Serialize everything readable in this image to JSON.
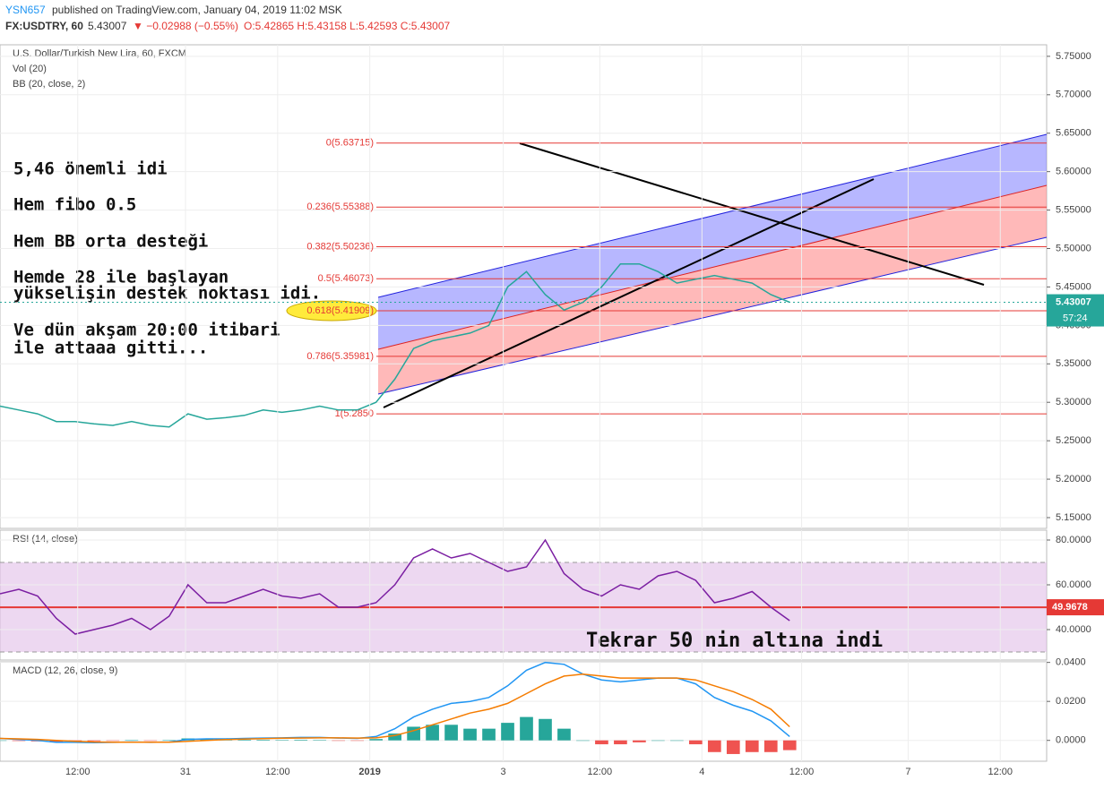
{
  "header": {
    "author": "YSN657",
    "published": "published on TradingView.com, January 04, 2019 11:02 MSK",
    "symbol": "FX:USDTRY, 60",
    "last": "5.43007",
    "change": "▼ −0.02988 (−0.55%)",
    "ohlc": "O:5.42865 H:5.43158 L:5.42593 C:5.43007"
  },
  "chart_data": [
    {
      "type": "line",
      "title": "U.S. Dollar/Turkish New Lira, 60, FXCM",
      "legend": [
        "Vol (20)",
        "BB (20, close, 2)"
      ],
      "x": [
        0,
        3,
        6,
        9,
        12,
        15,
        18,
        21,
        24,
        27,
        30,
        33,
        36,
        39,
        42,
        45,
        48,
        51,
        54,
        57,
        60,
        63,
        66,
        69,
        72,
        75,
        78,
        81,
        84,
        87,
        90,
        93,
        96,
        99,
        102,
        105,
        108,
        111,
        114,
        117,
        120,
        123,
        126
      ],
      "series": [
        {
          "name": "USDTRY",
          "color": "#26a69a",
          "values": [
            5.295,
            5.29,
            5.285,
            5.275,
            5.275,
            5.272,
            5.27,
            5.275,
            5.27,
            5.268,
            5.285,
            5.278,
            5.28,
            5.283,
            5.29,
            5.287,
            5.29,
            5.295,
            5.29,
            5.29,
            5.3,
            5.33,
            5.37,
            5.38,
            5.385,
            5.39,
            5.4,
            5.45,
            5.47,
            5.44,
            5.42,
            5.43,
            5.45,
            5.48,
            5.48,
            5.47,
            5.455,
            5.46,
            5.465,
            5.46,
            5.455,
            5.44,
            5.43007
          ]
        }
      ],
      "levels": [
        {
          "value": 5.63715,
          "label": "0(5.63715)"
        },
        {
          "value": 5.55388,
          "label": "0.236(5.55388)"
        },
        {
          "value": 5.50236,
          "label": "0.382(5.50236)"
        },
        {
          "value": 5.46073,
          "label": "0.5(5.46073)"
        },
        {
          "value": 5.41909,
          "label": "0.618(5.41909)",
          "highlight": true
        },
        {
          "value": 5.35981,
          "label": "0.786(5.35981)"
        },
        {
          "value": 5.285,
          "label": "1(5.2850"
        }
      ],
      "level_color": "#e53935",
      "last_price": 5.43007,
      "countdown": "57:24",
      "annotations": [
        "5,46 önemli idi",
        "Hem fibo 0.5",
        "Hem BB orta desteği",
        "Hemde 28 ile başlayan",
        "yükselişin destek noktası idi.",
        "Ve dün akşam 20:00 itibari",
        "ile attaaa gitti..."
      ],
      "xlim": [
        0,
        167
      ],
      "ylim": [
        5.136,
        5.765
      ],
      "yticks": [
        {
          "value": 5.15,
          "label": "5.15000"
        },
        {
          "value": 5.2,
          "label": "5.20000"
        },
        {
          "value": 5.25,
          "label": "5.25000"
        },
        {
          "value": 5.3,
          "label": "5.30000"
        },
        {
          "value": 5.35,
          "label": "5.35000"
        },
        {
          "value": 5.4,
          "label": "5.40000"
        },
        {
          "value": 5.45,
          "label": "5.45000"
        },
        {
          "value": 5.5,
          "label": "5.50000"
        },
        {
          "value": 5.55,
          "label": "5.55000"
        },
        {
          "value": 5.6,
          "label": "5.60000"
        },
        {
          "value": 5.65,
          "label": "5.65000"
        },
        {
          "value": 5.7,
          "label": "5.70000"
        },
        {
          "value": 5.75,
          "label": "5.75000"
        }
      ],
      "grid": true
    },
    {
      "type": "line",
      "title": "RSI (14, close)",
      "x": [
        0,
        3,
        6,
        9,
        12,
        15,
        18,
        21,
        24,
        27,
        30,
        33,
        36,
        39,
        42,
        45,
        48,
        51,
        54,
        57,
        60,
        63,
        66,
        69,
        72,
        75,
        78,
        81,
        84,
        87,
        90,
        93,
        96,
        99,
        102,
        105,
        108,
        111,
        114,
        117,
        120,
        123,
        126
      ],
      "series": [
        {
          "name": "RSI",
          "color": "#7b1fa2",
          "values": [
            56,
            58,
            55,
            45,
            38,
            40,
            42,
            45,
            40,
            46,
            60,
            52,
            52,
            55,
            58,
            55,
            54,
            56,
            50,
            50,
            52,
            60,
            72,
            76,
            72,
            74,
            70,
            66,
            68,
            80,
            65,
            58,
            55,
            60,
            58,
            64,
            66,
            62,
            52,
            54,
            57,
            50,
            44
          ]
        }
      ],
      "band": [
        30,
        70
      ],
      "band_color": "#e1bee7",
      "level": 49.9678,
      "level_color": "#e53935",
      "annotation": "Tekrar 50 nin altına indi",
      "xlim": [
        0,
        167
      ],
      "ylim": [
        26.4,
        84.4
      ],
      "yticks": [
        {
          "value": 40,
          "label": "40.0000"
        },
        {
          "value": 60,
          "label": "60.0000"
        },
        {
          "value": 80,
          "label": "80.0000"
        }
      ],
      "grid": true
    },
    {
      "type": "line",
      "title": "MACD (12, 26, close, 9)",
      "x": [
        0,
        3,
        6,
        9,
        12,
        15,
        18,
        21,
        24,
        27,
        30,
        33,
        36,
        39,
        42,
        45,
        48,
        51,
        54,
        57,
        60,
        63,
        66,
        69,
        72,
        75,
        78,
        81,
        84,
        87,
        90,
        93,
        96,
        99,
        102,
        105,
        108,
        111,
        114,
        117,
        120,
        123,
        126
      ],
      "series": [
        {
          "name": "Histogram",
          "type": "bar",
          "color": "#26a69a",
          "negative_color": "#ef5350",
          "values": [
            0,
            -0.0003,
            -0.0005,
            -0.001,
            -0.0005,
            -0.0004,
            -0.0001,
            0.0001,
            -0.0001,
            0.0001,
            0.001,
            0.0008,
            0.0004,
            0.0003,
            0.0003,
            0.0002,
            0.0003,
            0.0002,
            -0.0001,
            -0.0002,
            0.0007,
            0.0035,
            0.007,
            0.008,
            0.008,
            0.006,
            0.006,
            0.009,
            0.012,
            0.011,
            0.006,
            0,
            -0.002,
            -0.002,
            -0.001,
            0,
            0,
            -0.002,
            -0.006,
            -0.007,
            -0.006,
            -0.006,
            -0.005
          ]
        },
        {
          "name": "MACD",
          "color": "#2196f3",
          "values": [
            0.001,
            0.0005,
            0,
            -0.001,
            -0.001,
            -0.0012,
            -0.001,
            -0.0008,
            -0.001,
            -0.0008,
            0.0005,
            0.0008,
            0.0008,
            0.001,
            0.0012,
            0.0013,
            0.0015,
            0.0015,
            0.0012,
            0.001,
            0.002,
            0.006,
            0.012,
            0.016,
            0.019,
            0.02,
            0.022,
            0.028,
            0.036,
            0.04,
            0.039,
            0.034,
            0.031,
            0.03,
            0.031,
            0.032,
            0.032,
            0.029,
            0.022,
            0.018,
            0.015,
            0.01,
            0.002
          ]
        },
        {
          "name": "Signal",
          "color": "#f57c00",
          "values": [
            0.001,
            0.0008,
            0.0005,
            0,
            -0.0005,
            -0.0008,
            -0.0009,
            -0.0009,
            -0.0009,
            -0.0009,
            -0.0005,
            0,
            0.0004,
            0.0007,
            0.0009,
            0.0011,
            0.0012,
            0.0013,
            0.0013,
            0.0012,
            0.0013,
            0.0025,
            0.005,
            0.008,
            0.011,
            0.014,
            0.016,
            0.019,
            0.024,
            0.029,
            0.033,
            0.034,
            0.033,
            0.032,
            0.032,
            0.032,
            0.032,
            0.031,
            0.028,
            0.025,
            0.021,
            0.016,
            0.007
          ]
        }
      ],
      "xlim": [
        0,
        167
      ],
      "ylim": [
        -0.0107,
        0.0403
      ],
      "yticks": [
        {
          "value": 0,
          "label": "0.0000"
        },
        {
          "value": 0.02,
          "label": "0.0200"
        },
        {
          "value": 0.04,
          "label": "0.0400"
        }
      ],
      "xticks": [
        {
          "value": 12.4,
          "label": "12:00"
        },
        {
          "value": 29.6,
          "label": "31"
        },
        {
          "value": 44.3,
          "label": "12:00"
        },
        {
          "value": 59,
          "label": "2019"
        },
        {
          "value": 80.3,
          "label": "3"
        },
        {
          "value": 95.7,
          "label": "12:00"
        },
        {
          "value": 112,
          "label": "4"
        },
        {
          "value": 127.9,
          "label": "12:00"
        },
        {
          "value": 144.9,
          "label": "7"
        },
        {
          "value": 159.6,
          "label": "12:00"
        }
      ],
      "grid": true
    }
  ]
}
